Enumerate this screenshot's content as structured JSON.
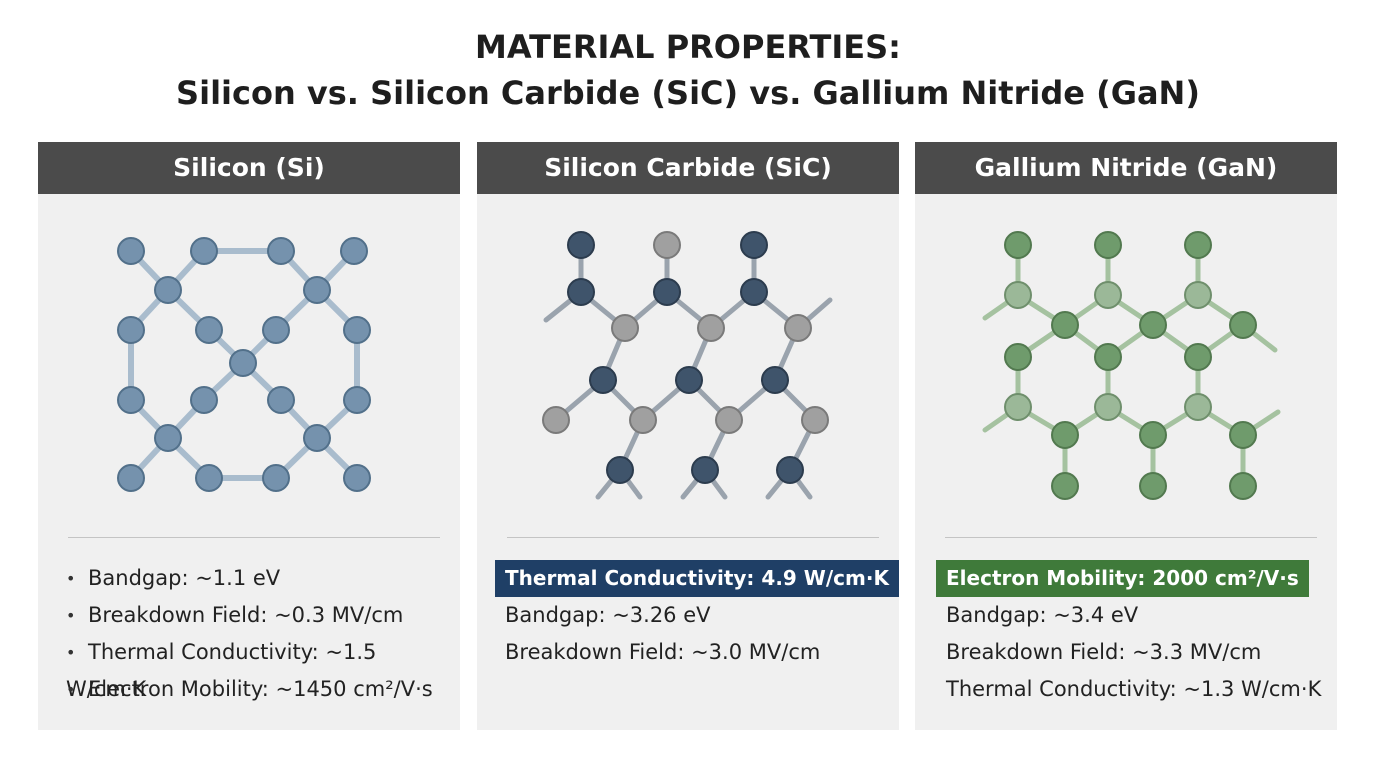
{
  "title": {
    "line1": "MATERIAL PROPERTIES:",
    "line2": "Silicon vs. Silicon Carbide (SiC) vs. Gallium Nitride (GaN)"
  },
  "panels": [
    {
      "header": "Silicon (Si)",
      "properties": [
        "Bandgap: ~1.1 eV",
        "Breakdown Field: ~0.3 MV/cm",
        "Thermal Conductivity: ~1.5 W/cm·K",
        "Electron Mobility: ~1450 cm²/V·s"
      ]
    },
    {
      "header": "Silicon Carbide (SiC)",
      "highlight": "Thermal Conductivity: 4.9 W/cm·K",
      "properties": [
        "Bandgap: ~3.26 eV",
        "Breakdown Field: ~3.0 MV/cm"
      ]
    },
    {
      "header": "Gallium Nitride (GaN)",
      "highlight": "Electron Mobility: 2000 cm²/V·s",
      "properties": [
        "Bandgap: ~3.4 eV",
        "Breakdown Field: ~3.3 MV/cm",
        "Thermal Conductivity: ~1.3 W/cm·K"
      ]
    }
  ]
}
